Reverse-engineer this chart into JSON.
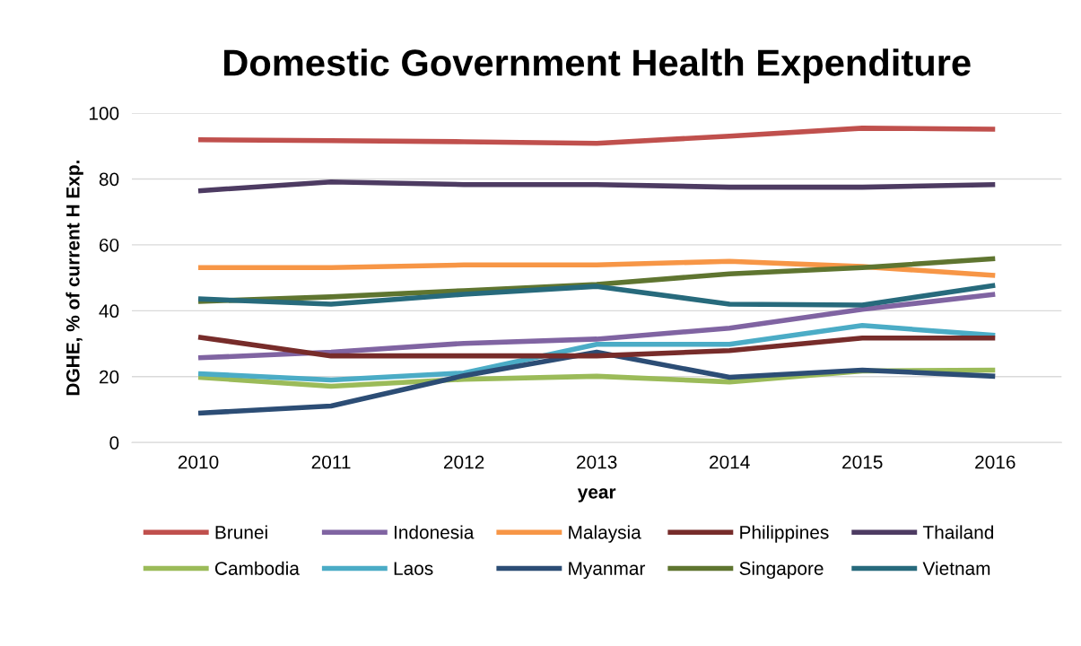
{
  "chart_data": {
    "type": "line",
    "title": "Domestic Government Health Expenditure",
    "xlabel": "year",
    "ylabel": "DGHE, % of current H Exp.",
    "categories": [
      "2010",
      "2011",
      "2012",
      "2013",
      "2014",
      "2015",
      "2016"
    ],
    "ylim": [
      0,
      100
    ],
    "yticks": [
      0,
      20,
      40,
      60,
      80,
      100
    ],
    "grid": "y",
    "legend": "bottom",
    "marker": "none",
    "line_style": "solid",
    "series": [
      {
        "name": "Brunei",
        "color": "#c0504d",
        "values": [
          91.9,
          91.6,
          91.3,
          90.8,
          93.0,
          95.4,
          95.1
        ]
      },
      {
        "name": "Cambodia",
        "color": "#9bbb59",
        "values": [
          19.8,
          17.1,
          19.2,
          20.1,
          18.4,
          21.7,
          22.0
        ]
      },
      {
        "name": "Indonesia",
        "color": "#8064a2",
        "values": [
          25.7,
          27.4,
          30.1,
          31.4,
          34.7,
          40.4,
          45.0
        ]
      },
      {
        "name": "Laos",
        "color": "#4bacc6",
        "values": [
          20.9,
          19.0,
          21.1,
          29.8,
          29.8,
          35.5,
          32.5
        ]
      },
      {
        "name": "Malaysia",
        "color": "#f79646",
        "values": [
          53.1,
          53.1,
          53.9,
          53.9,
          55.0,
          53.4,
          50.7
        ]
      },
      {
        "name": "Myanmar",
        "color": "#2c4d75",
        "values": [
          8.9,
          11.1,
          20.3,
          27.4,
          19.8,
          22.0,
          20.1
        ]
      },
      {
        "name": "Philippines",
        "color": "#772c2a",
        "values": [
          32.0,
          26.3,
          26.3,
          26.3,
          27.9,
          31.7,
          31.7
        ]
      },
      {
        "name": "Singapore",
        "color": "#5f7530",
        "values": [
          42.8,
          44.2,
          46.1,
          48.0,
          51.2,
          53.1,
          55.8
        ]
      },
      {
        "name": "Thailand",
        "color": "#4d3b62",
        "values": [
          76.4,
          79.1,
          78.3,
          78.3,
          77.5,
          77.5,
          78.3
        ]
      },
      {
        "name": "Vietnam",
        "color": "#276a7c",
        "values": [
          43.6,
          42.0,
          45.0,
          47.4,
          42.0,
          41.7,
          47.7
        ]
      }
    ]
  }
}
